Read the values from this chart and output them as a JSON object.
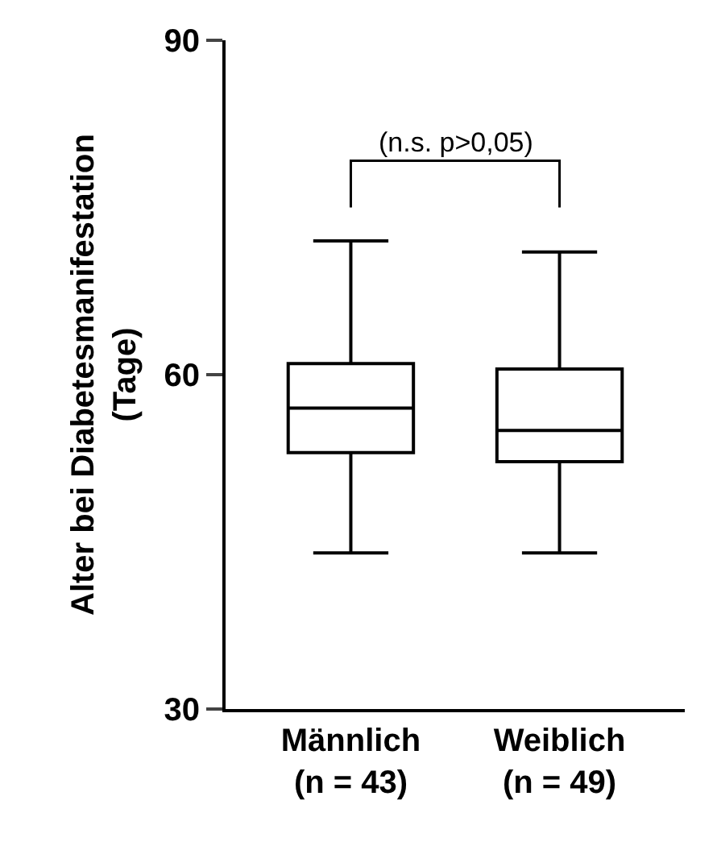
{
  "chart_data": {
    "type": "box",
    "ylabel": "Alter bei Diabetesmanifestation\n(Tage)",
    "categories": [
      "Männlich\n(n = 43)",
      "Weiblich\n(n = 49)"
    ],
    "boxes": [
      {
        "low": 44,
        "q1": 53,
        "median": 57,
        "q3": 61,
        "high": 72
      },
      {
        "low": 44,
        "q1": 52.2,
        "median": 55,
        "q3": 60.5,
        "high": 71
      }
    ],
    "ylim": [
      30,
      90
    ],
    "yticks": [
      30,
      60,
      90
    ],
    "grid": false,
    "annotations": [
      "(n.s. p>0,05)"
    ]
  }
}
